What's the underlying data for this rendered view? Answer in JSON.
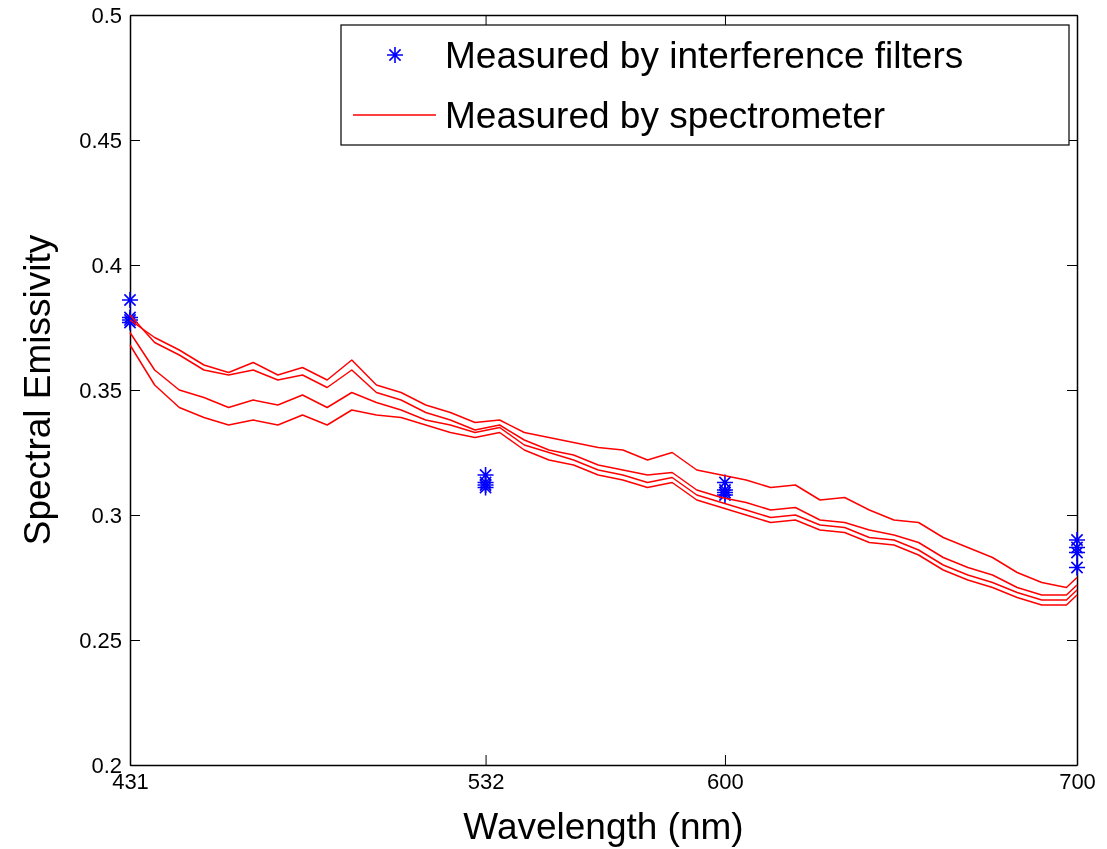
{
  "chart_data": {
    "type": "line",
    "xlabel": "Wavelength (nm)",
    "ylabel": "Spectral Emissivity",
    "xlim": [
      431,
      700
    ],
    "xticks": [
      431,
      532,
      600,
      700
    ],
    "ylim": [
      0.2,
      0.5
    ],
    "yticks": [
      0.2,
      0.25,
      0.3,
      0.35,
      0.4,
      0.45,
      0.5
    ],
    "legend": "top right",
    "grid": false,
    "series": [
      {
        "name": "Measured by interference filters",
        "type": "scatter",
        "marker": "cross",
        "color": "#0000ff",
        "x": [
          431,
          431,
          431,
          431,
          532,
          532,
          532,
          532,
          600,
          600,
          600,
          600,
          700,
          700,
          700,
          700
        ],
        "values": [
          0.386,
          0.379,
          0.377,
          0.378,
          0.316,
          0.313,
          0.311,
          0.312,
          0.313,
          0.31,
          0.309,
          0.308,
          0.29,
          0.287,
          0.285,
          0.279
        ]
      },
      {
        "name": "Measured by spectrometer",
        "color": "#ff0000",
        "x": [
          431,
          438,
          445,
          452,
          459,
          466,
          473,
          480,
          487,
          494,
          501,
          508,
          515,
          522,
          529,
          536,
          543,
          550,
          557,
          564,
          571,
          578,
          585,
          592,
          599,
          606,
          613,
          620,
          627,
          634,
          641,
          648,
          655,
          662,
          669,
          676,
          683,
          690,
          697,
          700
        ],
        "values": [
          0.378,
          0.371,
          0.366,
          0.36,
          0.357,
          0.361,
          0.356,
          0.359,
          0.354,
          0.362,
          0.352,
          0.349,
          0.344,
          0.341,
          0.337,
          0.338,
          0.333,
          0.331,
          0.329,
          0.327,
          0.326,
          0.322,
          0.325,
          0.318,
          0.316,
          0.314,
          0.311,
          0.312,
          0.306,
          0.307,
          0.302,
          0.298,
          0.297,
          0.291,
          0.287,
          0.283,
          0.277,
          0.273,
          0.271,
          0.275
        ]
      },
      {
        "color": "#ff0000",
        "x": [
          431,
          438,
          445,
          452,
          459,
          466,
          473,
          480,
          487,
          494,
          501,
          508,
          515,
          522,
          529,
          536,
          543,
          550,
          557,
          564,
          571,
          578,
          585,
          592,
          599,
          606,
          613,
          620,
          627,
          634,
          641,
          648,
          655,
          662,
          669,
          676,
          683,
          690,
          697,
          700
        ],
        "values": [
          0.38,
          0.369,
          0.364,
          0.358,
          0.356,
          0.358,
          0.354,
          0.356,
          0.351,
          0.358,
          0.349,
          0.346,
          0.341,
          0.338,
          0.334,
          0.336,
          0.33,
          0.326,
          0.324,
          0.32,
          0.318,
          0.316,
          0.317,
          0.31,
          0.307,
          0.305,
          0.302,
          0.303,
          0.298,
          0.297,
          0.294,
          0.292,
          0.289,
          0.283,
          0.279,
          0.276,
          0.271,
          0.268,
          0.268,
          0.272
        ]
      },
      {
        "color": "#ff0000",
        "x": [
          431,
          438,
          445,
          452,
          459,
          466,
          473,
          480,
          487,
          494,
          501,
          508,
          515,
          522,
          529,
          536,
          543,
          550,
          557,
          564,
          571,
          578,
          585,
          592,
          599,
          606,
          613,
          620,
          627,
          634,
          641,
          648,
          655,
          662,
          669,
          676,
          683,
          690,
          697,
          700
        ],
        "values": [
          0.373,
          0.358,
          0.35,
          0.347,
          0.343,
          0.346,
          0.344,
          0.348,
          0.343,
          0.349,
          0.345,
          0.342,
          0.338,
          0.336,
          0.333,
          0.335,
          0.328,
          0.325,
          0.322,
          0.318,
          0.316,
          0.313,
          0.315,
          0.308,
          0.305,
          0.302,
          0.299,
          0.3,
          0.296,
          0.295,
          0.291,
          0.29,
          0.286,
          0.28,
          0.276,
          0.273,
          0.269,
          0.266,
          0.266,
          0.27
        ]
      },
      {
        "color": "#ff0000",
        "x": [
          431,
          438,
          445,
          452,
          459,
          466,
          473,
          480,
          487,
          494,
          501,
          508,
          515,
          522,
          529,
          536,
          543,
          550,
          557,
          564,
          571,
          578,
          585,
          592,
          599,
          606,
          613,
          620,
          627,
          634,
          641,
          648,
          655,
          662,
          669,
          676,
          683,
          690,
          697,
          700
        ],
        "values": [
          0.368,
          0.352,
          0.343,
          0.339,
          0.336,
          0.338,
          0.336,
          0.34,
          0.336,
          0.342,
          0.34,
          0.339,
          0.336,
          0.333,
          0.331,
          0.333,
          0.326,
          0.322,
          0.32,
          0.316,
          0.314,
          0.311,
          0.313,
          0.306,
          0.303,
          0.3,
          0.297,
          0.298,
          0.294,
          0.293,
          0.289,
          0.288,
          0.284,
          0.278,
          0.274,
          0.271,
          0.267,
          0.264,
          0.264,
          0.268
        ]
      }
    ]
  }
}
